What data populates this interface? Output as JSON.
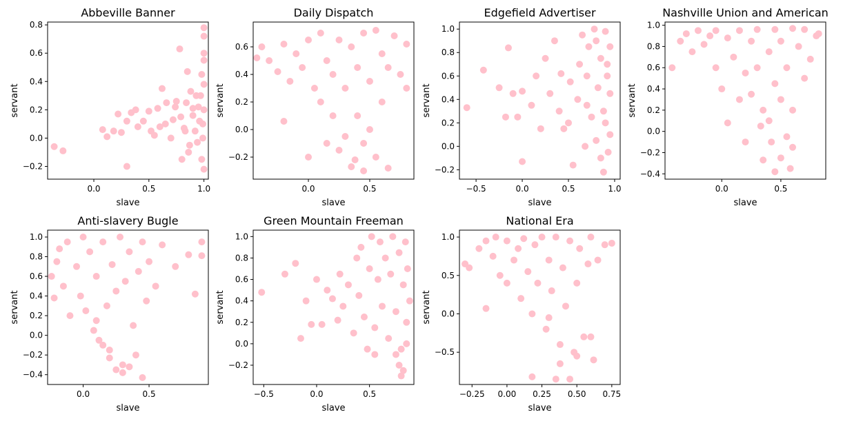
{
  "figure": {
    "background": "#ffffff"
  },
  "point_color": "#ffc0cb",
  "chart_data": [
    {
      "type": "scatter",
      "title": "Abbeville Banner",
      "xlabel": "slave",
      "ylabel": "servant",
      "xlim": [
        -0.42,
        1.04
      ],
      "ylim": [
        -0.29,
        0.82
      ],
      "xticks": [
        0.0,
        0.5,
        1.0
      ],
      "xtick_labels": [
        "0.0",
        "0.5",
        "1.0"
      ],
      "yticks": [
        -0.2,
        0.0,
        0.2,
        0.4,
        0.6,
        0.8
      ],
      "ytick_labels": [
        "−0.2",
        "0.0",
        "0.2",
        "0.4",
        "0.6",
        "0.8"
      ],
      "series": [
        {
          "x": [
            -0.36,
            -0.28,
            0.08,
            0.12,
            0.18,
            0.22,
            0.25,
            0.3,
            0.3,
            0.34,
            0.38,
            0.4,
            0.45,
            0.5,
            0.52,
            0.55,
            0.58,
            0.6,
            0.62,
            0.65,
            0.66,
            0.7,
            0.72,
            0.75,
            0.78,
            0.8,
            0.82,
            0.84,
            0.85,
            0.86,
            0.88,
            0.9,
            0.92,
            0.94,
            0.95,
            0.97,
            0.98,
            0.99,
            1.0,
            1.0,
            1.0,
            1.0,
            1.0,
            1.0,
            1.0,
            0.99,
            0.98,
            0.96,
            0.93,
            0.9,
            0.87,
            0.83,
            0.79,
            0.74
          ],
          "y": [
            -0.06,
            -0.09,
            0.06,
            0.01,
            0.05,
            0.17,
            0.04,
            -0.2,
            0.12,
            0.18,
            0.2,
            0.08,
            0.12,
            0.19,
            0.05,
            0.02,
            0.21,
            0.08,
            0.35,
            0.1,
            0.25,
            0.0,
            0.13,
            0.26,
            0.63,
            -0.15,
            0.07,
            0.25,
            0.47,
            -0.1,
            0.33,
            0.16,
            0.05,
            -0.03,
            0.22,
            0.3,
            0.45,
            0.1,
            0.6,
            0.78,
            0.72,
            0.55,
            0.38,
            0.2,
            -0.22,
            0.0,
            -0.15,
            0.12,
            0.3,
            0.21,
            -0.05,
            0.05,
            0.15,
            0.22
          ]
        }
      ]
    },
    {
      "type": "scatter",
      "title": "Daily Dispatch",
      "xlabel": "slave",
      "ylabel": "servant",
      "xlim": [
        -0.45,
        0.86
      ],
      "ylim": [
        -0.36,
        0.78
      ],
      "xticks": [
        0.0,
        0.5
      ],
      "xtick_labels": [
        "0.0",
        "0.5"
      ],
      "yticks": [
        -0.2,
        0.0,
        0.2,
        0.4,
        0.6
      ],
      "ytick_labels": [
        "−0.2",
        "0.0",
        "0.2",
        "0.4",
        "0.6"
      ],
      "series": [
        {
          "x": [
            -0.42,
            -0.38,
            -0.32,
            -0.25,
            -0.2,
            -0.2,
            -0.15,
            -0.1,
            -0.05,
            0.0,
            0.0,
            0.05,
            0.1,
            0.1,
            0.15,
            0.2,
            0.2,
            0.25,
            0.3,
            0.3,
            0.35,
            0.4,
            0.4,
            0.45,
            0.5,
            0.5,
            0.55,
            0.6,
            0.6,
            0.65,
            0.7,
            0.75,
            0.8,
            0.8,
            0.15,
            0.25,
            0.35,
            0.45,
            0.55,
            0.38,
            0.45,
            0.65
          ],
          "y": [
            0.52,
            0.6,
            0.5,
            0.42,
            0.06,
            0.62,
            0.35,
            0.55,
            0.45,
            -0.2,
            0.65,
            0.3,
            0.2,
            0.7,
            0.5,
            0.1,
            0.4,
            0.65,
            -0.05,
            0.3,
            0.6,
            0.1,
            0.45,
            0.7,
            0.0,
            0.35,
            0.72,
            0.2,
            0.55,
            0.45,
            0.68,
            0.4,
            0.62,
            0.3,
            -0.1,
            -0.15,
            -0.27,
            -0.3,
            -0.2,
            -0.22,
            -0.1,
            -0.28
          ]
        }
      ]
    },
    {
      "type": "scatter",
      "title": "Edgefield Advertiser",
      "xlabel": "slave",
      "ylabel": "servant",
      "xlim": [
        -0.68,
        1.06
      ],
      "ylim": [
        -0.28,
        1.06
      ],
      "xticks": [
        -0.5,
        0.0,
        0.5,
        1.0
      ],
      "xtick_labels": [
        "−0.5",
        "0.0",
        "0.5",
        "1.0"
      ],
      "yticks": [
        -0.2,
        0.0,
        0.2,
        0.4,
        0.6,
        0.8,
        1.0
      ],
      "ytick_labels": [
        "−0.2",
        "0.0",
        "0.2",
        "0.4",
        "0.6",
        "0.8",
        "1.0"
      ],
      "series": [
        {
          "x": [
            -0.6,
            -0.42,
            -0.25,
            -0.18,
            -0.15,
            -0.1,
            -0.05,
            0.0,
            0.0,
            0.1,
            0.15,
            0.2,
            0.25,
            0.3,
            0.35,
            0.4,
            0.42,
            0.45,
            0.5,
            0.52,
            0.55,
            0.6,
            0.62,
            0.65,
            0.68,
            0.7,
            0.72,
            0.75,
            0.78,
            0.8,
            0.82,
            0.85,
            0.88,
            0.9,
            0.92,
            0.95,
            0.95,
            0.95,
            0.93,
            0.9,
            0.85,
            0.88,
            0.92,
            0.7,
            0.8
          ],
          "y": [
            0.33,
            0.65,
            0.5,
            0.25,
            0.84,
            0.45,
            0.25,
            -0.13,
            0.47,
            0.35,
            0.6,
            0.15,
            0.75,
            0.45,
            0.9,
            0.3,
            0.62,
            0.15,
            0.2,
            0.55,
            -0.16,
            0.4,
            0.7,
            0.95,
            0.0,
            0.6,
            0.85,
            0.25,
            1.0,
            0.05,
            0.5,
            0.75,
            0.3,
            0.98,
            0.6,
            0.1,
            0.85,
            0.45,
            -0.05,
            0.2,
            -0.1,
            -0.22,
            0.7,
            0.35,
            0.9
          ]
        }
      ]
    },
    {
      "type": "scatter",
      "title": "Nashville Union and American",
      "xlabel": "slave",
      "ylabel": "servant",
      "xlim": [
        -0.48,
        0.88
      ],
      "ylim": [
        -0.45,
        1.03
      ],
      "xticks": [
        0.0,
        0.5
      ],
      "xtick_labels": [
        "0.0",
        "0.5"
      ],
      "yticks": [
        -0.4,
        -0.2,
        0.0,
        0.2,
        0.4,
        0.6,
        0.8,
        1.0
      ],
      "ytick_labels": [
        "−0.4",
        "−0.2",
        "0.0",
        "0.2",
        "0.4",
        "0.6",
        "0.8",
        "1.0"
      ],
      "series": [
        {
          "x": [
            -0.42,
            -0.35,
            -0.3,
            -0.25,
            -0.2,
            -0.15,
            -0.1,
            -0.05,
            -0.05,
            0.0,
            0.05,
            0.05,
            0.1,
            0.15,
            0.15,
            0.2,
            0.25,
            0.25,
            0.3,
            0.3,
            0.35,
            0.4,
            0.4,
            0.45,
            0.45,
            0.5,
            0.5,
            0.55,
            0.6,
            0.6,
            0.65,
            0.7,
            0.7,
            0.75,
            0.8,
            0.82,
            0.35,
            0.45,
            0.5,
            0.58,
            0.33,
            0.42,
            0.55,
            0.6,
            0.2
          ],
          "y": [
            0.6,
            0.85,
            0.92,
            0.75,
            0.95,
            0.82,
            0.9,
            0.6,
            0.95,
            0.4,
            0.08,
            0.88,
            0.7,
            0.3,
            0.95,
            0.55,
            0.85,
            0.35,
            0.96,
            0.6,
            0.2,
            0.75,
            0.1,
            0.96,
            0.45,
            0.3,
            0.85,
            0.6,
            0.97,
            0.2,
            0.8,
            0.5,
            0.96,
            0.68,
            0.9,
            0.92,
            -0.27,
            -0.38,
            -0.25,
            -0.35,
            0.05,
            -0.1,
            -0.05,
            -0.15,
            -0.1
          ]
        }
      ]
    },
    {
      "type": "scatter",
      "title": "Anti-slavery Bugle",
      "xlabel": "slave",
      "ylabel": "servant",
      "xlim": [
        -0.27,
        0.95
      ],
      "ylim": [
        -0.5,
        1.07
      ],
      "xticks": [
        0.0,
        0.5
      ],
      "xtick_labels": [
        "0.0",
        "0.5"
      ],
      "yticks": [
        -0.4,
        -0.2,
        0.0,
        0.2,
        0.4,
        0.6,
        0.8,
        1.0
      ],
      "ytick_labels": [
        "−0.4",
        "−0.2",
        "0.0",
        "0.2",
        "0.4",
        "0.6",
        "0.8",
        "1.0"
      ],
      "series": [
        {
          "x": [
            -0.24,
            -0.22,
            -0.2,
            -0.18,
            -0.15,
            -0.12,
            -0.1,
            -0.05,
            -0.02,
            0.0,
            0.02,
            0.05,
            0.08,
            0.1,
            0.12,
            0.15,
            0.18,
            0.2,
            0.22,
            0.25,
            0.28,
            0.3,
            0.32,
            0.35,
            0.38,
            0.4,
            0.42,
            0.45,
            0.48,
            0.5,
            0.55,
            0.6,
            0.7,
            0.8,
            0.85,
            0.9,
            0.9,
            0.2,
            0.25,
            0.3,
            0.35,
            0.45,
            0.15,
            0.1
          ],
          "y": [
            0.6,
            0.38,
            0.75,
            0.88,
            0.5,
            0.95,
            0.2,
            0.7,
            0.4,
            1.0,
            0.25,
            0.85,
            0.05,
            0.6,
            -0.05,
            0.95,
            0.3,
            -0.15,
            0.72,
            0.45,
            1.0,
            -0.3,
            0.55,
            0.85,
            0.1,
            -0.2,
            0.65,
            0.95,
            0.35,
            0.75,
            0.5,
            0.92,
            0.7,
            0.82,
            0.42,
            0.95,
            0.81,
            -0.23,
            -0.35,
            -0.38,
            -0.32,
            -0.43,
            -0.1,
            0.15
          ]
        }
      ]
    },
    {
      "type": "scatter",
      "title": "Green Mountain Freeman",
      "xlabel": "slave",
      "ylabel": "servant",
      "xlim": [
        -0.6,
        0.92
      ],
      "ylim": [
        -0.38,
        1.06
      ],
      "xticks": [
        -0.5,
        0.0,
        0.5
      ],
      "xtick_labels": [
        "−0.5",
        "0.0",
        "0.5"
      ],
      "yticks": [
        -0.2,
        0.0,
        0.2,
        0.4,
        0.6,
        0.8,
        1.0
      ],
      "ytick_labels": [
        "−0.2",
        "0.0",
        "0.2",
        "0.4",
        "0.6",
        "0.8",
        "1.0"
      ],
      "series": [
        {
          "x": [
            -0.52,
            -0.3,
            -0.2,
            -0.15,
            -0.1,
            -0.05,
            0.0,
            0.05,
            0.1,
            0.15,
            0.2,
            0.22,
            0.25,
            0.3,
            0.35,
            0.38,
            0.4,
            0.42,
            0.45,
            0.5,
            0.52,
            0.55,
            0.58,
            0.6,
            0.62,
            0.65,
            0.68,
            0.7,
            0.72,
            0.75,
            0.78,
            0.8,
            0.82,
            0.84,
            0.85,
            0.86,
            0.88,
            0.8,
            0.78,
            0.75,
            0.82,
            0.85,
            0.48,
            0.55
          ],
          "y": [
            0.48,
            0.65,
            0.75,
            0.05,
            0.4,
            0.18,
            0.6,
            0.18,
            0.5,
            0.42,
            0.22,
            0.65,
            0.35,
            0.55,
            0.1,
            0.8,
            0.45,
            0.9,
            0.25,
            0.7,
            1.0,
            0.15,
            0.6,
            0.95,
            0.35,
            0.8,
            0.05,
            0.65,
            1.0,
            0.3,
            0.85,
            -0.05,
            0.55,
            0.95,
            0.2,
            0.7,
            0.4,
            -0.3,
            -0.2,
            -0.1,
            -0.25,
            0.0,
            -0.05,
            -0.1
          ]
        }
      ]
    },
    {
      "type": "scatter",
      "title": "National Era",
      "xlabel": "slave",
      "ylabel": "servant",
      "xlim": [
        -0.34,
        0.81
      ],
      "ylim": [
        -0.92,
        1.09
      ],
      "xticks": [
        -0.25,
        0.0,
        0.25,
        0.5,
        0.75
      ],
      "xtick_labels": [
        "−0.25",
        "0.00",
        "0.25",
        "0.50",
        "0.75"
      ],
      "yticks": [
        -0.5,
        0.0,
        0.5,
        1.0
      ],
      "ytick_labels": [
        "−0.5",
        "0.0",
        "0.5",
        "1.0"
      ],
      "series": [
        {
          "x": [
            -0.3,
            -0.27,
            -0.2,
            -0.15,
            -0.15,
            -0.1,
            -0.08,
            -0.05,
            0.0,
            0.0,
            0.05,
            0.08,
            0.1,
            0.12,
            0.15,
            0.18,
            0.2,
            0.22,
            0.25,
            0.28,
            0.3,
            0.32,
            0.35,
            0.38,
            0.4,
            0.42,
            0.45,
            0.48,
            0.5,
            0.52,
            0.55,
            0.58,
            0.6,
            0.62,
            0.65,
            0.7,
            0.75,
            0.18,
            0.35,
            0.38,
            0.45,
            0.5,
            0.6,
            0.3
          ],
          "y": [
            0.65,
            0.6,
            0.85,
            0.07,
            0.95,
            0.75,
            1.0,
            0.5,
            0.4,
            0.95,
            0.7,
            0.85,
            0.2,
            0.98,
            0.55,
            0.0,
            0.9,
            0.4,
            1.0,
            -0.2,
            0.7,
            0.3,
            1.0,
            -0.4,
            0.6,
            0.1,
            0.95,
            -0.5,
            0.4,
            0.85,
            -0.3,
            0.65,
            1.0,
            -0.6,
            0.7,
            0.9,
            0.92,
            -0.82,
            -0.85,
            -0.65,
            -0.85,
            -0.55,
            -0.3,
            -0.05
          ]
        }
      ]
    }
  ]
}
